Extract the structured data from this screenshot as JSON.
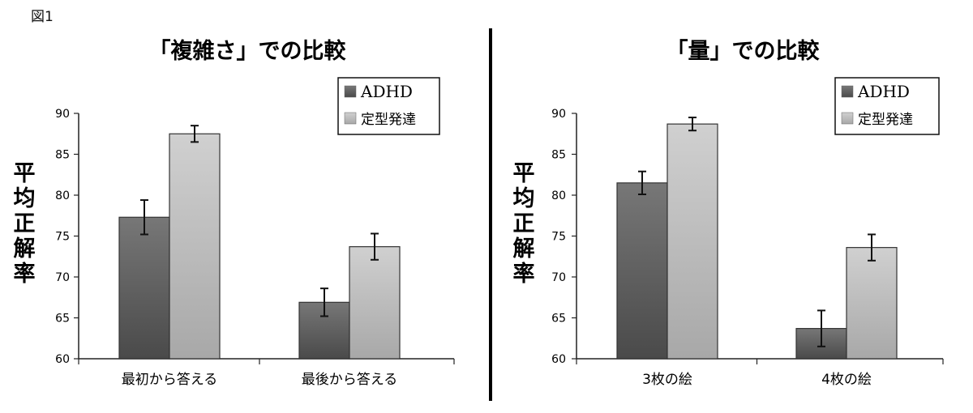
{
  "figure_label": "図1",
  "chart_data": [
    {
      "type": "bar",
      "title": "「複雑さ」での比較",
      "ylabel": "平均正解率",
      "ylim": [
        60,
        90
      ],
      "yticks": [
        60,
        65,
        70,
        75,
        80,
        85,
        90
      ],
      "categories": [
        "最初から答える",
        "最後から答える"
      ],
      "series": [
        {
          "name": "ADHD",
          "values": [
            77.3,
            66.9
          ],
          "error": [
            2.1,
            1.7
          ]
        },
        {
          "name": "定型発達",
          "values": [
            87.5,
            73.7
          ],
          "error": [
            1.0,
            1.6
          ]
        }
      ],
      "legend_position": "top-right"
    },
    {
      "type": "bar",
      "title": "「量」での比較",
      "ylabel": "平均正解率",
      "ylim": [
        60,
        90
      ],
      "yticks": [
        60,
        65,
        70,
        75,
        80,
        85,
        90
      ],
      "categories": [
        "3枚の絵",
        "4枚の絵"
      ],
      "series": [
        {
          "name": "ADHD",
          "values": [
            81.5,
            63.7
          ],
          "error": [
            1.4,
            2.2
          ]
        },
        {
          "name": "定型発達",
          "values": [
            88.7,
            73.6
          ],
          "error": [
            0.8,
            1.6
          ]
        }
      ],
      "legend_position": "top-right"
    }
  ],
  "colors": {
    "adhd_top": "#777777",
    "adhd_bottom": "#4a4a4a",
    "td_top": "#d0d0d0",
    "td_bottom": "#a8a8a8",
    "axis": "#222222",
    "divider": "#000000"
  }
}
